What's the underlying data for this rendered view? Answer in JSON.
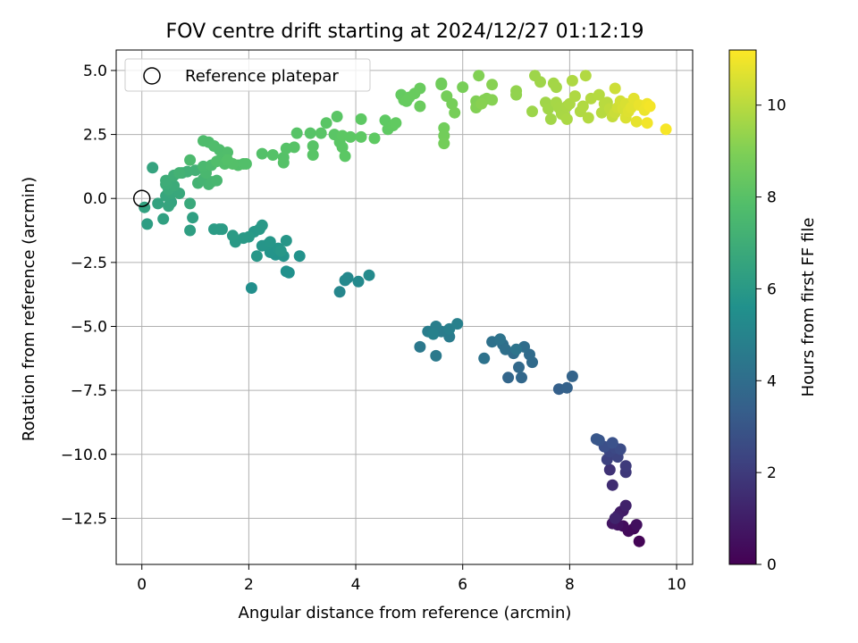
{
  "chart_data": {
    "type": "scatter",
    "title": "FOV centre drift starting at 2024/12/27 01:12:19",
    "xlabel": "Angular distance from reference (arcmin)",
    "ylabel": "Rotation from reference (arcmin)",
    "xlim": [
      -0.48,
      10.3
    ],
    "ylim": [
      -14.3,
      5.8
    ],
    "x_ticks": [
      0,
      2,
      4,
      6,
      8,
      10
    ],
    "x_tick_labels": [
      "0",
      "2",
      "4",
      "6",
      "8",
      "10"
    ],
    "y_ticks": [
      5.0,
      2.5,
      0.0,
      -2.5,
      -5.0,
      -7.5,
      -10.0,
      -12.5
    ],
    "y_tick_labels": [
      "5.0",
      "2.5",
      "0.0",
      "−2.5",
      "−5.0",
      "−7.5",
      "−10.0",
      "−12.5"
    ],
    "grid": true,
    "legend": {
      "position": "top-left",
      "label": "Reference platepar"
    },
    "reference_point": {
      "x": 0,
      "y": 0
    },
    "colorbar": {
      "label": "Hours from first FF file",
      "colormap": "viridis",
      "range": [
        0,
        11.2
      ],
      "ticks": [
        0,
        2,
        4,
        6,
        8,
        10
      ],
      "tick_labels": [
        "0",
        "2",
        "4",
        "6",
        "8",
        "10"
      ]
    },
    "points": [
      [
        9.3,
        -13.4,
        0.1
      ],
      [
        9.2,
        -12.9,
        0.2
      ],
      [
        9.1,
        -13.0,
        0.3
      ],
      [
        9.0,
        -12.8,
        0.4
      ],
      [
        9.25,
        -12.75,
        0.5
      ],
      [
        8.9,
        -12.75,
        0.6
      ],
      [
        8.8,
        -12.7,
        0.7
      ],
      [
        9.0,
        -12.2,
        0.8
      ],
      [
        8.95,
        -12.25,
        0.9
      ],
      [
        8.9,
        -12.4,
        1.0
      ],
      [
        9.05,
        -12.0,
        1.1
      ],
      [
        8.85,
        -12.5,
        1.2
      ],
      [
        8.8,
        -11.2,
        1.5
      ],
      [
        8.75,
        -10.6,
        1.7
      ],
      [
        9.05,
        -10.7,
        1.9
      ],
      [
        9.05,
        -10.45,
        2.0
      ],
      [
        8.7,
        -10.2,
        2.2
      ],
      [
        8.9,
        -10.1,
        2.3
      ],
      [
        8.75,
        -9.9,
        2.4
      ],
      [
        8.85,
        -9.75,
        2.5
      ],
      [
        8.95,
        -9.8,
        2.6
      ],
      [
        8.65,
        -9.7,
        2.7
      ],
      [
        8.8,
        -9.55,
        2.8
      ],
      [
        8.55,
        -9.45,
        2.9
      ],
      [
        8.5,
        -9.4,
        3.0
      ],
      [
        7.8,
        -7.45,
        3.4
      ],
      [
        7.95,
        -7.4,
        3.5
      ],
      [
        8.05,
        -6.95,
        3.6
      ],
      [
        6.85,
        -7.0,
        3.7
      ],
      [
        7.1,
        -7.0,
        3.75
      ],
      [
        7.05,
        -6.6,
        3.8
      ],
      [
        7.3,
        -6.4,
        3.85
      ],
      [
        7.25,
        -6.1,
        3.9
      ],
      [
        6.95,
        -6.05,
        3.95
      ],
      [
        7.15,
        -5.8,
        4.0
      ],
      [
        6.75,
        -5.7,
        4.05
      ],
      [
        6.8,
        -5.9,
        4.1
      ],
      [
        6.55,
        -5.6,
        4.15
      ],
      [
        6.4,
        -6.25,
        4.2
      ],
      [
        6.7,
        -5.5,
        4.25
      ],
      [
        7.0,
        -5.9,
        4.3
      ],
      [
        5.2,
        -5.8,
        4.5
      ],
      [
        5.5,
        -6.15,
        4.55
      ],
      [
        5.75,
        -5.4,
        4.6
      ],
      [
        5.6,
        -5.2,
        4.65
      ],
      [
        5.35,
        -5.2,
        4.7
      ],
      [
        5.5,
        -5.0,
        4.75
      ],
      [
        5.75,
        -5.1,
        4.8
      ],
      [
        5.9,
        -4.9,
        4.85
      ],
      [
        5.45,
        -5.3,
        4.9
      ],
      [
        3.7,
        -3.65,
        5.1
      ],
      [
        3.85,
        -3.1,
        5.15
      ],
      [
        3.8,
        -3.2,
        5.2
      ],
      [
        4.05,
        -3.25,
        5.25
      ],
      [
        4.25,
        -3.0,
        5.3
      ],
      [
        2.05,
        -3.5,
        5.5
      ],
      [
        2.75,
        -2.9,
        5.55
      ],
      [
        2.7,
        -2.85,
        5.6
      ],
      [
        2.95,
        -2.25,
        5.65
      ],
      [
        2.5,
        -2.2,
        5.7
      ],
      [
        2.65,
        -2.25,
        5.72
      ],
      [
        2.4,
        -2.1,
        5.75
      ],
      [
        2.55,
        -1.95,
        5.78
      ],
      [
        2.35,
        -1.8,
        5.8
      ],
      [
        2.25,
        -1.85,
        5.82
      ],
      [
        2.4,
        -1.7,
        5.84
      ],
      [
        2.7,
        -1.65,
        5.86
      ],
      [
        2.6,
        -2.05,
        5.88
      ],
      [
        2.15,
        -2.25,
        5.9
      ],
      [
        2.1,
        -1.3,
        5.92
      ],
      [
        2.2,
        -1.2,
        5.94
      ],
      [
        2.25,
        -1.05,
        5.96
      ],
      [
        2.0,
        -1.5,
        5.98
      ],
      [
        1.9,
        -1.55,
        6.0
      ],
      [
        1.75,
        -1.7,
        6.02
      ],
      [
        1.7,
        -1.45,
        6.04
      ],
      [
        1.45,
        -1.2,
        6.06
      ],
      [
        1.35,
        -1.2,
        6.08
      ],
      [
        1.5,
        -1.2,
        6.1
      ],
      [
        0.1,
        -1.0,
        6.2
      ],
      [
        0.9,
        -1.25,
        6.25
      ],
      [
        0.95,
        -0.75,
        6.3
      ],
      [
        0.4,
        -0.8,
        6.35
      ],
      [
        0.05,
        -0.35,
        6.4
      ],
      [
        0.3,
        -0.2,
        6.45
      ],
      [
        0.55,
        -0.15,
        6.5
      ],
      [
        0.5,
        -0.3,
        6.55
      ],
      [
        0.45,
        0.1,
        6.6
      ],
      [
        0.55,
        0.2,
        6.65
      ],
      [
        0.7,
        0.2,
        6.7
      ],
      [
        0.9,
        -0.2,
        6.75
      ],
      [
        0.5,
        0.35,
        6.8
      ],
      [
        0.6,
        0.5,
        6.85
      ],
      [
        0.45,
        0.55,
        6.9
      ],
      [
        0.45,
        0.7,
        6.95
      ],
      [
        0.6,
        0.9,
        7.0
      ],
      [
        0.75,
        1.0,
        7.05
      ],
      [
        0.85,
        1.05,
        7.1
      ],
      [
        1.0,
        1.1,
        7.15
      ],
      [
        0.7,
        1.0,
        7.2
      ],
      [
        1.05,
        0.6,
        7.25
      ],
      [
        1.15,
        0.75,
        7.3
      ],
      [
        1.25,
        0.55,
        7.35
      ],
      [
        1.3,
        0.65,
        7.4
      ],
      [
        1.4,
        0.7,
        7.45
      ],
      [
        1.2,
        1.0,
        7.5
      ],
      [
        1.15,
        1.25,
        7.55
      ],
      [
        1.3,
        1.3,
        7.6
      ],
      [
        0.2,
        1.2,
        6.5
      ],
      [
        0.9,
        1.5,
        7.6
      ],
      [
        1.15,
        2.25,
        7.7
      ],
      [
        1.25,
        2.2,
        7.72
      ],
      [
        1.35,
        2.05,
        7.74
      ],
      [
        1.45,
        1.9,
        7.76
      ],
      [
        1.5,
        1.6,
        7.78
      ],
      [
        1.6,
        1.8,
        7.8
      ],
      [
        1.4,
        1.45,
        7.82
      ],
      [
        1.55,
        1.35,
        7.84
      ],
      [
        1.8,
        1.3,
        7.86
      ],
      [
        1.9,
        1.35,
        7.88
      ],
      [
        1.95,
        1.35,
        7.9
      ],
      [
        1.7,
        1.35,
        7.92
      ],
      [
        1.6,
        1.5,
        7.94
      ],
      [
        2.25,
        1.75,
        7.96
      ],
      [
        2.45,
        1.7,
        7.98
      ],
      [
        2.65,
        1.6,
        8.0
      ],
      [
        2.65,
        1.4,
        8.02
      ],
      [
        2.7,
        1.95,
        8.04
      ],
      [
        2.85,
        2.0,
        8.06
      ],
      [
        2.9,
        2.55,
        8.08
      ],
      [
        3.15,
        2.55,
        8.1
      ],
      [
        3.2,
        2.05,
        8.12
      ],
      [
        3.2,
        1.7,
        8.14
      ],
      [
        3.35,
        2.55,
        8.16
      ],
      [
        3.45,
        2.95,
        8.18
      ],
      [
        3.6,
        2.5,
        8.2
      ],
      [
        3.65,
        3.2,
        8.22
      ],
      [
        3.7,
        2.2,
        8.24
      ],
      [
        3.75,
        2.0,
        8.26
      ],
      [
        3.8,
        1.65,
        8.28
      ],
      [
        3.75,
        2.45,
        8.3
      ],
      [
        3.9,
        2.4,
        8.32
      ],
      [
        4.1,
        2.4,
        8.34
      ],
      [
        4.1,
        3.1,
        8.36
      ],
      [
        4.35,
        2.35,
        8.38
      ],
      [
        4.55,
        3.05,
        8.4
      ],
      [
        4.6,
        2.7,
        8.42
      ],
      [
        4.7,
        2.85,
        8.44
      ],
      [
        4.75,
        2.95,
        8.46
      ],
      [
        4.85,
        4.05,
        8.5
      ],
      [
        4.9,
        3.85,
        8.52
      ],
      [
        4.95,
        3.8,
        8.54
      ],
      [
        5.0,
        3.95,
        8.56
      ],
      [
        5.1,
        4.1,
        8.58
      ],
      [
        5.2,
        4.3,
        8.6
      ],
      [
        5.2,
        3.6,
        8.62
      ],
      [
        5.6,
        4.5,
        8.7
      ],
      [
        5.6,
        4.45,
        8.72
      ],
      [
        5.65,
        2.75,
        8.74
      ],
      [
        5.65,
        2.45,
        8.76
      ],
      [
        5.65,
        2.15,
        8.78
      ],
      [
        5.7,
        4.0,
        8.8
      ],
      [
        5.8,
        3.7,
        8.82
      ],
      [
        5.85,
        3.35,
        8.84
      ],
      [
        6.0,
        4.35,
        8.86
      ],
      [
        6.25,
        3.8,
        9.0
      ],
      [
        6.3,
        4.8,
        9.02
      ],
      [
        6.25,
        3.55,
        9.04
      ],
      [
        6.4,
        3.85,
        9.06
      ],
      [
        6.45,
        3.9,
        9.08
      ],
      [
        6.55,
        3.85,
        9.1
      ],
      [
        6.55,
        4.45,
        9.12
      ],
      [
        6.35,
        3.7,
        9.14
      ],
      [
        7.0,
        4.05,
        9.3
      ],
      [
        7.0,
        4.2,
        9.32
      ],
      [
        7.3,
        3.4,
        9.5
      ],
      [
        7.35,
        4.8,
        9.52
      ],
      [
        7.45,
        4.55,
        9.54
      ],
      [
        7.55,
        3.75,
        9.56
      ],
      [
        7.6,
        3.5,
        9.58
      ],
      [
        7.65,
        3.1,
        9.6
      ],
      [
        7.7,
        4.5,
        9.62
      ],
      [
        7.75,
        4.35,
        9.64
      ],
      [
        7.75,
        3.75,
        9.66
      ],
      [
        7.8,
        3.55,
        9.68
      ],
      [
        7.85,
        3.3,
        9.7
      ],
      [
        7.9,
        3.25,
        9.72
      ],
      [
        7.95,
        3.6,
        9.74
      ],
      [
        7.95,
        3.1,
        9.76
      ],
      [
        8.0,
        3.7,
        9.78
      ],
      [
        8.05,
        4.6,
        9.8
      ],
      [
        8.1,
        4.0,
        9.82
      ],
      [
        8.2,
        3.4,
        9.84
      ],
      [
        8.25,
        3.6,
        9.86
      ],
      [
        8.3,
        4.8,
        9.88
      ],
      [
        8.35,
        3.15,
        9.9
      ],
      [
        8.4,
        3.9,
        9.92
      ],
      [
        8.55,
        4.05,
        9.94
      ],
      [
        8.6,
        3.35,
        9.96
      ],
      [
        8.65,
        3.7,
        9.98
      ],
      [
        8.7,
        3.75,
        10.0
      ],
      [
        8.75,
        3.5,
        10.1
      ],
      [
        8.8,
        3.2,
        10.2
      ],
      [
        8.85,
        3.35,
        10.3
      ],
      [
        8.85,
        4.3,
        10.35
      ],
      [
        8.9,
        3.55,
        10.4
      ],
      [
        8.95,
        3.8,
        10.45
      ],
      [
        9.0,
        3.5,
        10.5
      ],
      [
        9.05,
        3.7,
        10.55
      ],
      [
        9.05,
        3.15,
        10.6
      ],
      [
        9.1,
        3.4,
        10.65
      ],
      [
        9.15,
        3.55,
        10.7
      ],
      [
        9.2,
        3.9,
        10.75
      ],
      [
        9.25,
        3.0,
        10.8
      ],
      [
        9.3,
        3.65,
        10.85
      ],
      [
        9.4,
        3.45,
        10.9
      ],
      [
        9.45,
        3.7,
        10.95
      ],
      [
        9.45,
        2.95,
        11.0
      ],
      [
        9.5,
        3.6,
        11.05
      ],
      [
        9.8,
        2.7,
        11.1
      ]
    ]
  }
}
